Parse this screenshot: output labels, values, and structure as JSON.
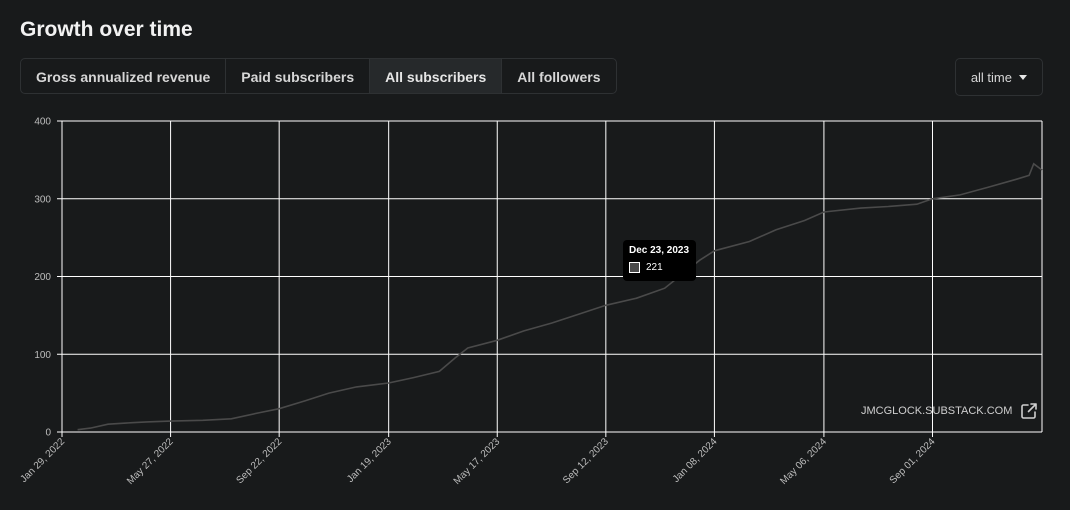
{
  "title": "Growth over time",
  "tabs": [
    {
      "label": "Gross annualized revenue",
      "active": false
    },
    {
      "label": "Paid subscribers",
      "active": false
    },
    {
      "label": "All subscribers",
      "active": true
    },
    {
      "label": "All followers",
      "active": false
    }
  ],
  "range": {
    "label": "all time",
    "icon": "caret-down-icon"
  },
  "watermark": {
    "label": "JMCGLOCK.SUBSTACK.COM",
    "icon": "external-link-icon"
  },
  "tooltip": {
    "date": "Dec 23, 2023",
    "value": "221"
  },
  "colors": {
    "line": "#4a4a4a",
    "background": "#181a1b",
    "grid": "#ffffff"
  },
  "chart_data": {
    "type": "line",
    "title": "",
    "xlabel": "",
    "ylabel": "",
    "ylim": [
      0,
      400
    ],
    "yticks": [
      "0",
      "100",
      "200",
      "300",
      "400"
    ],
    "xlim": [
      "2022-01-29",
      "2024-12-29"
    ],
    "xticks": [
      "Jan 29, 2022",
      "May 27, 2022",
      "Sep 22, 2022",
      "Jan 19, 2023",
      "May 17, 2023",
      "Sep 12, 2023",
      "Jan 08, 2024",
      "May 06, 2024",
      "Sep 01, 2024"
    ],
    "xtick_dates": [
      "2022-01-29",
      "2022-05-27",
      "2022-09-22",
      "2023-01-19",
      "2023-05-17",
      "2023-09-12",
      "2024-01-08",
      "2024-05-06",
      "2024-09-01"
    ],
    "grid": true,
    "legend": "none",
    "series": [
      {
        "values": [
          [
            "2022-02-15",
            3
          ],
          [
            "2022-03-01",
            5
          ],
          [
            "2022-03-20",
            10
          ],
          [
            "2022-04-15",
            12
          ],
          [
            "2022-05-01",
            13
          ],
          [
            "2022-05-27",
            14
          ],
          [
            "2022-07-01",
            15
          ],
          [
            "2022-08-01",
            17
          ],
          [
            "2022-09-01",
            25
          ],
          [
            "2022-09-22",
            30
          ],
          [
            "2022-10-20",
            40
          ],
          [
            "2022-11-15",
            50
          ],
          [
            "2022-12-15",
            58
          ],
          [
            "2023-01-19",
            63
          ],
          [
            "2023-02-15",
            70
          ],
          [
            "2023-03-15",
            78
          ],
          [
            "2023-04-01",
            95
          ],
          [
            "2023-04-15",
            108
          ],
          [
            "2023-05-17",
            118
          ],
          [
            "2023-06-15",
            130
          ],
          [
            "2023-07-15",
            140
          ],
          [
            "2023-08-15",
            152
          ],
          [
            "2023-09-12",
            163
          ],
          [
            "2023-10-15",
            172
          ],
          [
            "2023-11-15",
            185
          ],
          [
            "2023-12-23",
            221
          ],
          [
            "2024-01-08",
            233
          ],
          [
            "2024-02-15",
            245
          ],
          [
            "2024-03-15",
            260
          ],
          [
            "2024-04-15",
            272
          ],
          [
            "2024-05-06",
            283
          ],
          [
            "2024-06-15",
            288
          ],
          [
            "2024-07-15",
            290
          ],
          [
            "2024-08-15",
            293
          ],
          [
            "2024-09-01",
            300
          ],
          [
            "2024-10-01",
            305
          ],
          [
            "2024-11-01",
            315
          ],
          [
            "2024-12-01",
            325
          ],
          [
            "2024-12-15",
            330
          ],
          [
            "2024-12-20",
            345
          ],
          [
            "2024-12-29",
            337
          ]
        ]
      }
    ]
  }
}
